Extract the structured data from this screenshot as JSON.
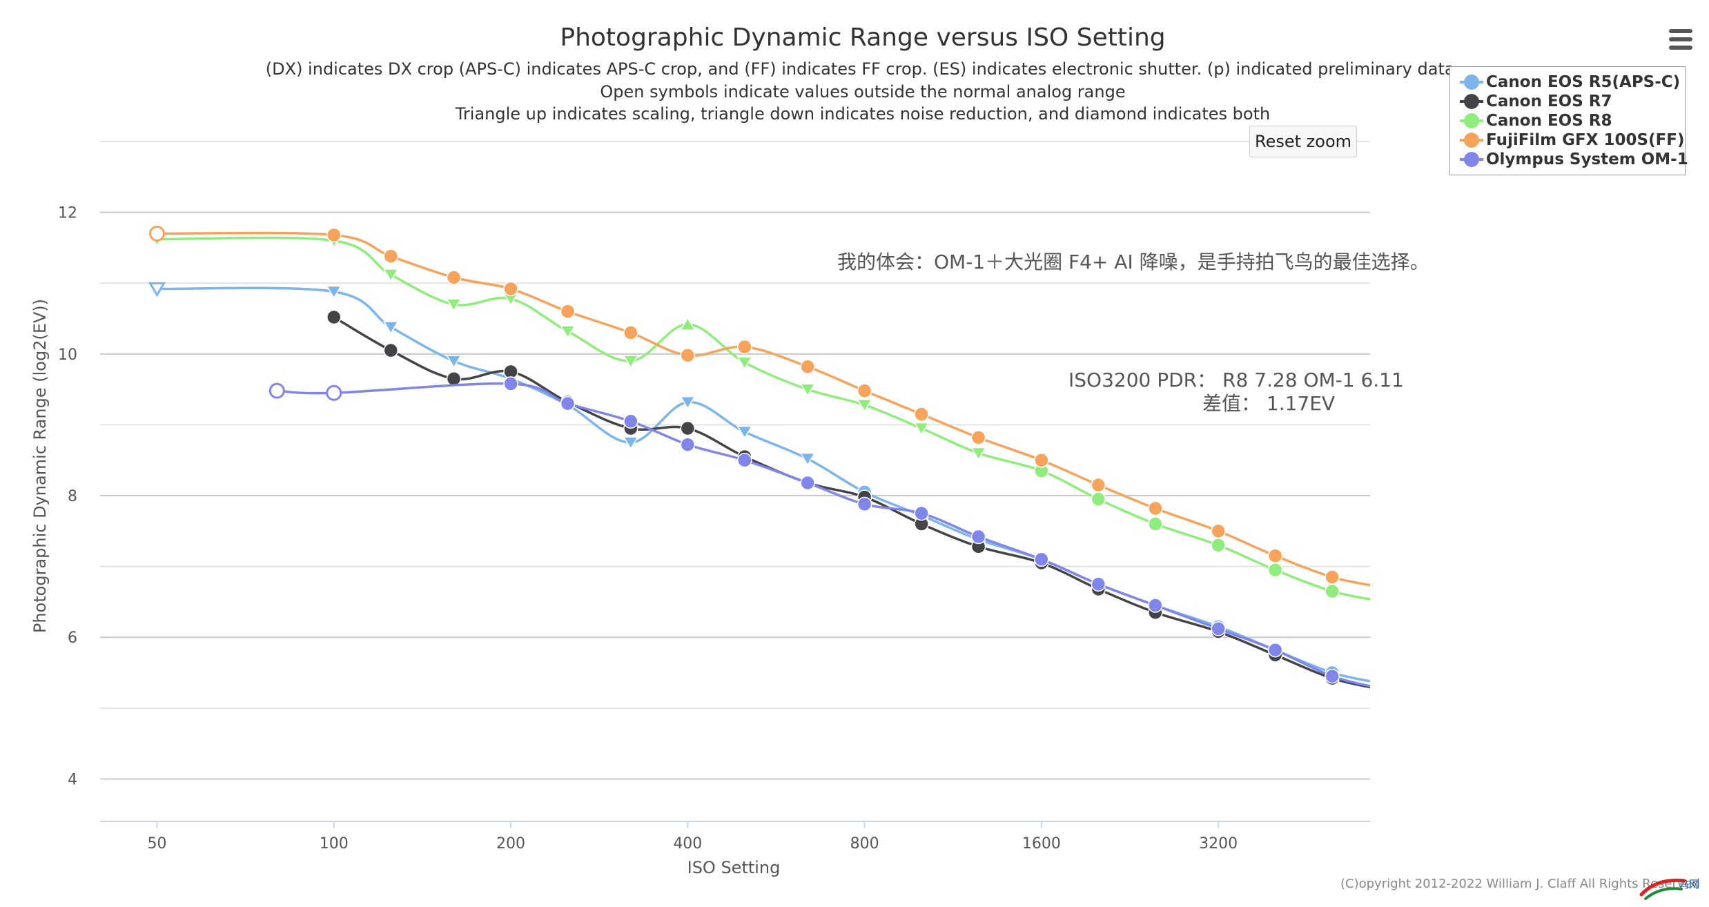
{
  "ui": {
    "reset_zoom_label": "Reset zoom",
    "menu_icon": "hamburger-menu-icon",
    "copyright": "(C)opyright 2012-2022 William J. Claff All Rights Reserved",
    "watermark_text": "鸟网"
  },
  "chart_data": {
    "type": "line",
    "title": "Photographic Dynamic Range versus ISO Setting",
    "subtitle": [
      "(DX) indicates DX crop (APS-C) indicates APS-C crop, and (FF) indicates FF crop. (ES) indicates electronic shutter. (p) indicated preliminary data.",
      "Open symbols indicate values outside the normal analog range",
      "Triangle up indicates scaling, triangle down indicates noise reduction, and diamond indicates both"
    ],
    "xlabel": "ISO Setting",
    "ylabel": "Photographic Dynamic Range (log2(EV))",
    "x_scale": "log2",
    "xlim": [
      40,
      5800
    ],
    "ylim": [
      3.4,
      13
    ],
    "x_ticks": [
      50,
      100,
      200,
      400,
      800,
      1600,
      3200
    ],
    "y_ticks": [
      4,
      6,
      8,
      10,
      12
    ],
    "grid": true,
    "legend_position": "top-right",
    "annotations": [
      "我的体会：OM-1＋大光圈 F4+ AI 降噪，是手持拍飞鸟的最佳选择。",
      "ISO3200 PDR： R8 7.28   OM-1  6.11",
      "差值：  1.17EV"
    ],
    "series": [
      {
        "name": "Canon EOS R5(APS-C)",
        "color": "#7cb5ec",
        "points": [
          {
            "x": 50,
            "y": 10.92,
            "symbol": "triangle-down",
            "open": true
          },
          {
            "x": 100,
            "y": 10.88,
            "symbol": "triangle-down"
          },
          {
            "x": 125,
            "y": 10.38,
            "symbol": "triangle-down"
          },
          {
            "x": 160,
            "y": 9.9,
            "symbol": "triangle-down"
          },
          {
            "x": 200,
            "y": 9.65,
            "symbol": "triangle-down"
          },
          {
            "x": 250,
            "y": 9.28,
            "symbol": "triangle-down"
          },
          {
            "x": 320,
            "y": 8.75,
            "symbol": "triangle-down"
          },
          {
            "x": 400,
            "y": 9.32,
            "symbol": "triangle-down"
          },
          {
            "x": 500,
            "y": 8.9,
            "symbol": "triangle-down"
          },
          {
            "x": 640,
            "y": 8.52,
            "symbol": "triangle-down"
          },
          {
            "x": 800,
            "y": 8.05,
            "symbol": "circle"
          },
          {
            "x": 1000,
            "y": 7.72,
            "symbol": "circle"
          },
          {
            "x": 1250,
            "y": 7.38,
            "symbol": "circle"
          },
          {
            "x": 1600,
            "y": 7.1,
            "symbol": "circle"
          },
          {
            "x": 2000,
            "y": 6.75,
            "symbol": "circle"
          },
          {
            "x": 2500,
            "y": 6.45,
            "symbol": "circle"
          },
          {
            "x": 3200,
            "y": 6.15,
            "symbol": "circle"
          },
          {
            "x": 4000,
            "y": 5.82,
            "symbol": "circle"
          },
          {
            "x": 5000,
            "y": 5.5,
            "symbol": "circle"
          }
        ]
      },
      {
        "name": "Canon EOS R7",
        "color": "#434348",
        "points": [
          {
            "x": 100,
            "y": 10.52,
            "symbol": "circle"
          },
          {
            "x": 125,
            "y": 10.05,
            "symbol": "circle"
          },
          {
            "x": 160,
            "y": 9.65,
            "symbol": "circle"
          },
          {
            "x": 200,
            "y": 9.75,
            "symbol": "circle"
          },
          {
            "x": 250,
            "y": 9.32,
            "symbol": "circle"
          },
          {
            "x": 320,
            "y": 8.95,
            "symbol": "circle"
          },
          {
            "x": 400,
            "y": 8.95,
            "symbol": "circle"
          },
          {
            "x": 500,
            "y": 8.55,
            "symbol": "circle"
          },
          {
            "x": 640,
            "y": 8.18,
            "symbol": "circle"
          },
          {
            "x": 800,
            "y": 7.98,
            "symbol": "circle"
          },
          {
            "x": 1000,
            "y": 7.6,
            "symbol": "circle"
          },
          {
            "x": 1250,
            "y": 7.28,
            "symbol": "circle"
          },
          {
            "x": 1600,
            "y": 7.05,
            "symbol": "circle"
          },
          {
            "x": 2000,
            "y": 6.68,
            "symbol": "circle"
          },
          {
            "x": 2500,
            "y": 6.35,
            "symbol": "circle"
          },
          {
            "x": 3200,
            "y": 6.08,
            "symbol": "circle"
          },
          {
            "x": 4000,
            "y": 5.75,
            "symbol": "circle"
          },
          {
            "x": 5000,
            "y": 5.42,
            "symbol": "circle"
          }
        ]
      },
      {
        "name": "Canon EOS R8",
        "color": "#90ed7d",
        "points": [
          {
            "x": 50,
            "y": 11.62,
            "symbol": "triangle-down"
          },
          {
            "x": 100,
            "y": 11.6,
            "symbol": "triangle-down"
          },
          {
            "x": 125,
            "y": 11.12,
            "symbol": "triangle-down"
          },
          {
            "x": 160,
            "y": 10.7,
            "symbol": "triangle-down"
          },
          {
            "x": 200,
            "y": 10.78,
            "symbol": "triangle-down"
          },
          {
            "x": 250,
            "y": 10.32,
            "symbol": "triangle-down"
          },
          {
            "x": 320,
            "y": 9.9,
            "symbol": "triangle-down"
          },
          {
            "x": 400,
            "y": 10.42,
            "symbol": "triangle-up"
          },
          {
            "x": 500,
            "y": 9.88,
            "symbol": "triangle-down"
          },
          {
            "x": 640,
            "y": 9.5,
            "symbol": "triangle-down"
          },
          {
            "x": 800,
            "y": 9.28,
            "symbol": "triangle-down"
          },
          {
            "x": 1000,
            "y": 8.95,
            "symbol": "triangle-down"
          },
          {
            "x": 1250,
            "y": 8.6,
            "symbol": "triangle-down"
          },
          {
            "x": 1600,
            "y": 8.35,
            "symbol": "circle"
          },
          {
            "x": 2000,
            "y": 7.95,
            "symbol": "circle"
          },
          {
            "x": 2500,
            "y": 7.6,
            "symbol": "circle"
          },
          {
            "x": 3200,
            "y": 7.3,
            "symbol": "circle"
          },
          {
            "x": 4000,
            "y": 6.95,
            "symbol": "circle"
          },
          {
            "x": 5000,
            "y": 6.65,
            "symbol": "circle"
          }
        ]
      },
      {
        "name": "FujiFilm GFX 100S(FF)",
        "color": "#f7a35c",
        "points": [
          {
            "x": 50,
            "y": 11.7,
            "symbol": "circle",
            "open": true
          },
          {
            "x": 100,
            "y": 11.68,
            "symbol": "circle"
          },
          {
            "x": 125,
            "y": 11.38,
            "symbol": "circle"
          },
          {
            "x": 160,
            "y": 11.08,
            "symbol": "circle"
          },
          {
            "x": 200,
            "y": 10.92,
            "symbol": "circle"
          },
          {
            "x": 250,
            "y": 10.6,
            "symbol": "circle"
          },
          {
            "x": 320,
            "y": 10.3,
            "symbol": "circle"
          },
          {
            "x": 400,
            "y": 9.98,
            "symbol": "circle"
          },
          {
            "x": 500,
            "y": 10.1,
            "symbol": "circle"
          },
          {
            "x": 640,
            "y": 9.82,
            "symbol": "circle"
          },
          {
            "x": 800,
            "y": 9.48,
            "symbol": "circle"
          },
          {
            "x": 1000,
            "y": 9.15,
            "symbol": "circle"
          },
          {
            "x": 1250,
            "y": 8.82,
            "symbol": "circle"
          },
          {
            "x": 1600,
            "y": 8.5,
            "symbol": "circle"
          },
          {
            "x": 2000,
            "y": 8.15,
            "symbol": "circle"
          },
          {
            "x": 2500,
            "y": 7.82,
            "symbol": "circle"
          },
          {
            "x": 3200,
            "y": 7.5,
            "symbol": "circle"
          },
          {
            "x": 4000,
            "y": 7.15,
            "symbol": "circle"
          },
          {
            "x": 5000,
            "y": 6.85,
            "symbol": "circle"
          }
        ]
      },
      {
        "name": "Olympus System OM-1",
        "color": "#8085e9",
        "points": [
          {
            "x": 80,
            "y": 9.48,
            "symbol": "circle",
            "open": true
          },
          {
            "x": 100,
            "y": 9.45,
            "symbol": "circle",
            "open": true
          },
          {
            "x": 200,
            "y": 9.58,
            "symbol": "circle"
          },
          {
            "x": 250,
            "y": 9.3,
            "symbol": "circle"
          },
          {
            "x": 320,
            "y": 9.05,
            "symbol": "circle"
          },
          {
            "x": 400,
            "y": 8.72,
            "symbol": "circle"
          },
          {
            "x": 500,
            "y": 8.5,
            "symbol": "circle"
          },
          {
            "x": 640,
            "y": 8.18,
            "symbol": "circle"
          },
          {
            "x": 800,
            "y": 7.88,
            "symbol": "circle"
          },
          {
            "x": 1000,
            "y": 7.75,
            "symbol": "circle"
          },
          {
            "x": 1250,
            "y": 7.42,
            "symbol": "circle"
          },
          {
            "x": 1600,
            "y": 7.1,
            "symbol": "circle"
          },
          {
            "x": 2000,
            "y": 6.75,
            "symbol": "circle"
          },
          {
            "x": 2500,
            "y": 6.45,
            "symbol": "circle"
          },
          {
            "x": 3200,
            "y": 6.12,
            "symbol": "circle"
          },
          {
            "x": 4000,
            "y": 5.82,
            "symbol": "circle"
          },
          {
            "x": 5000,
            "y": 5.45,
            "symbol": "circle"
          }
        ]
      }
    ]
  }
}
